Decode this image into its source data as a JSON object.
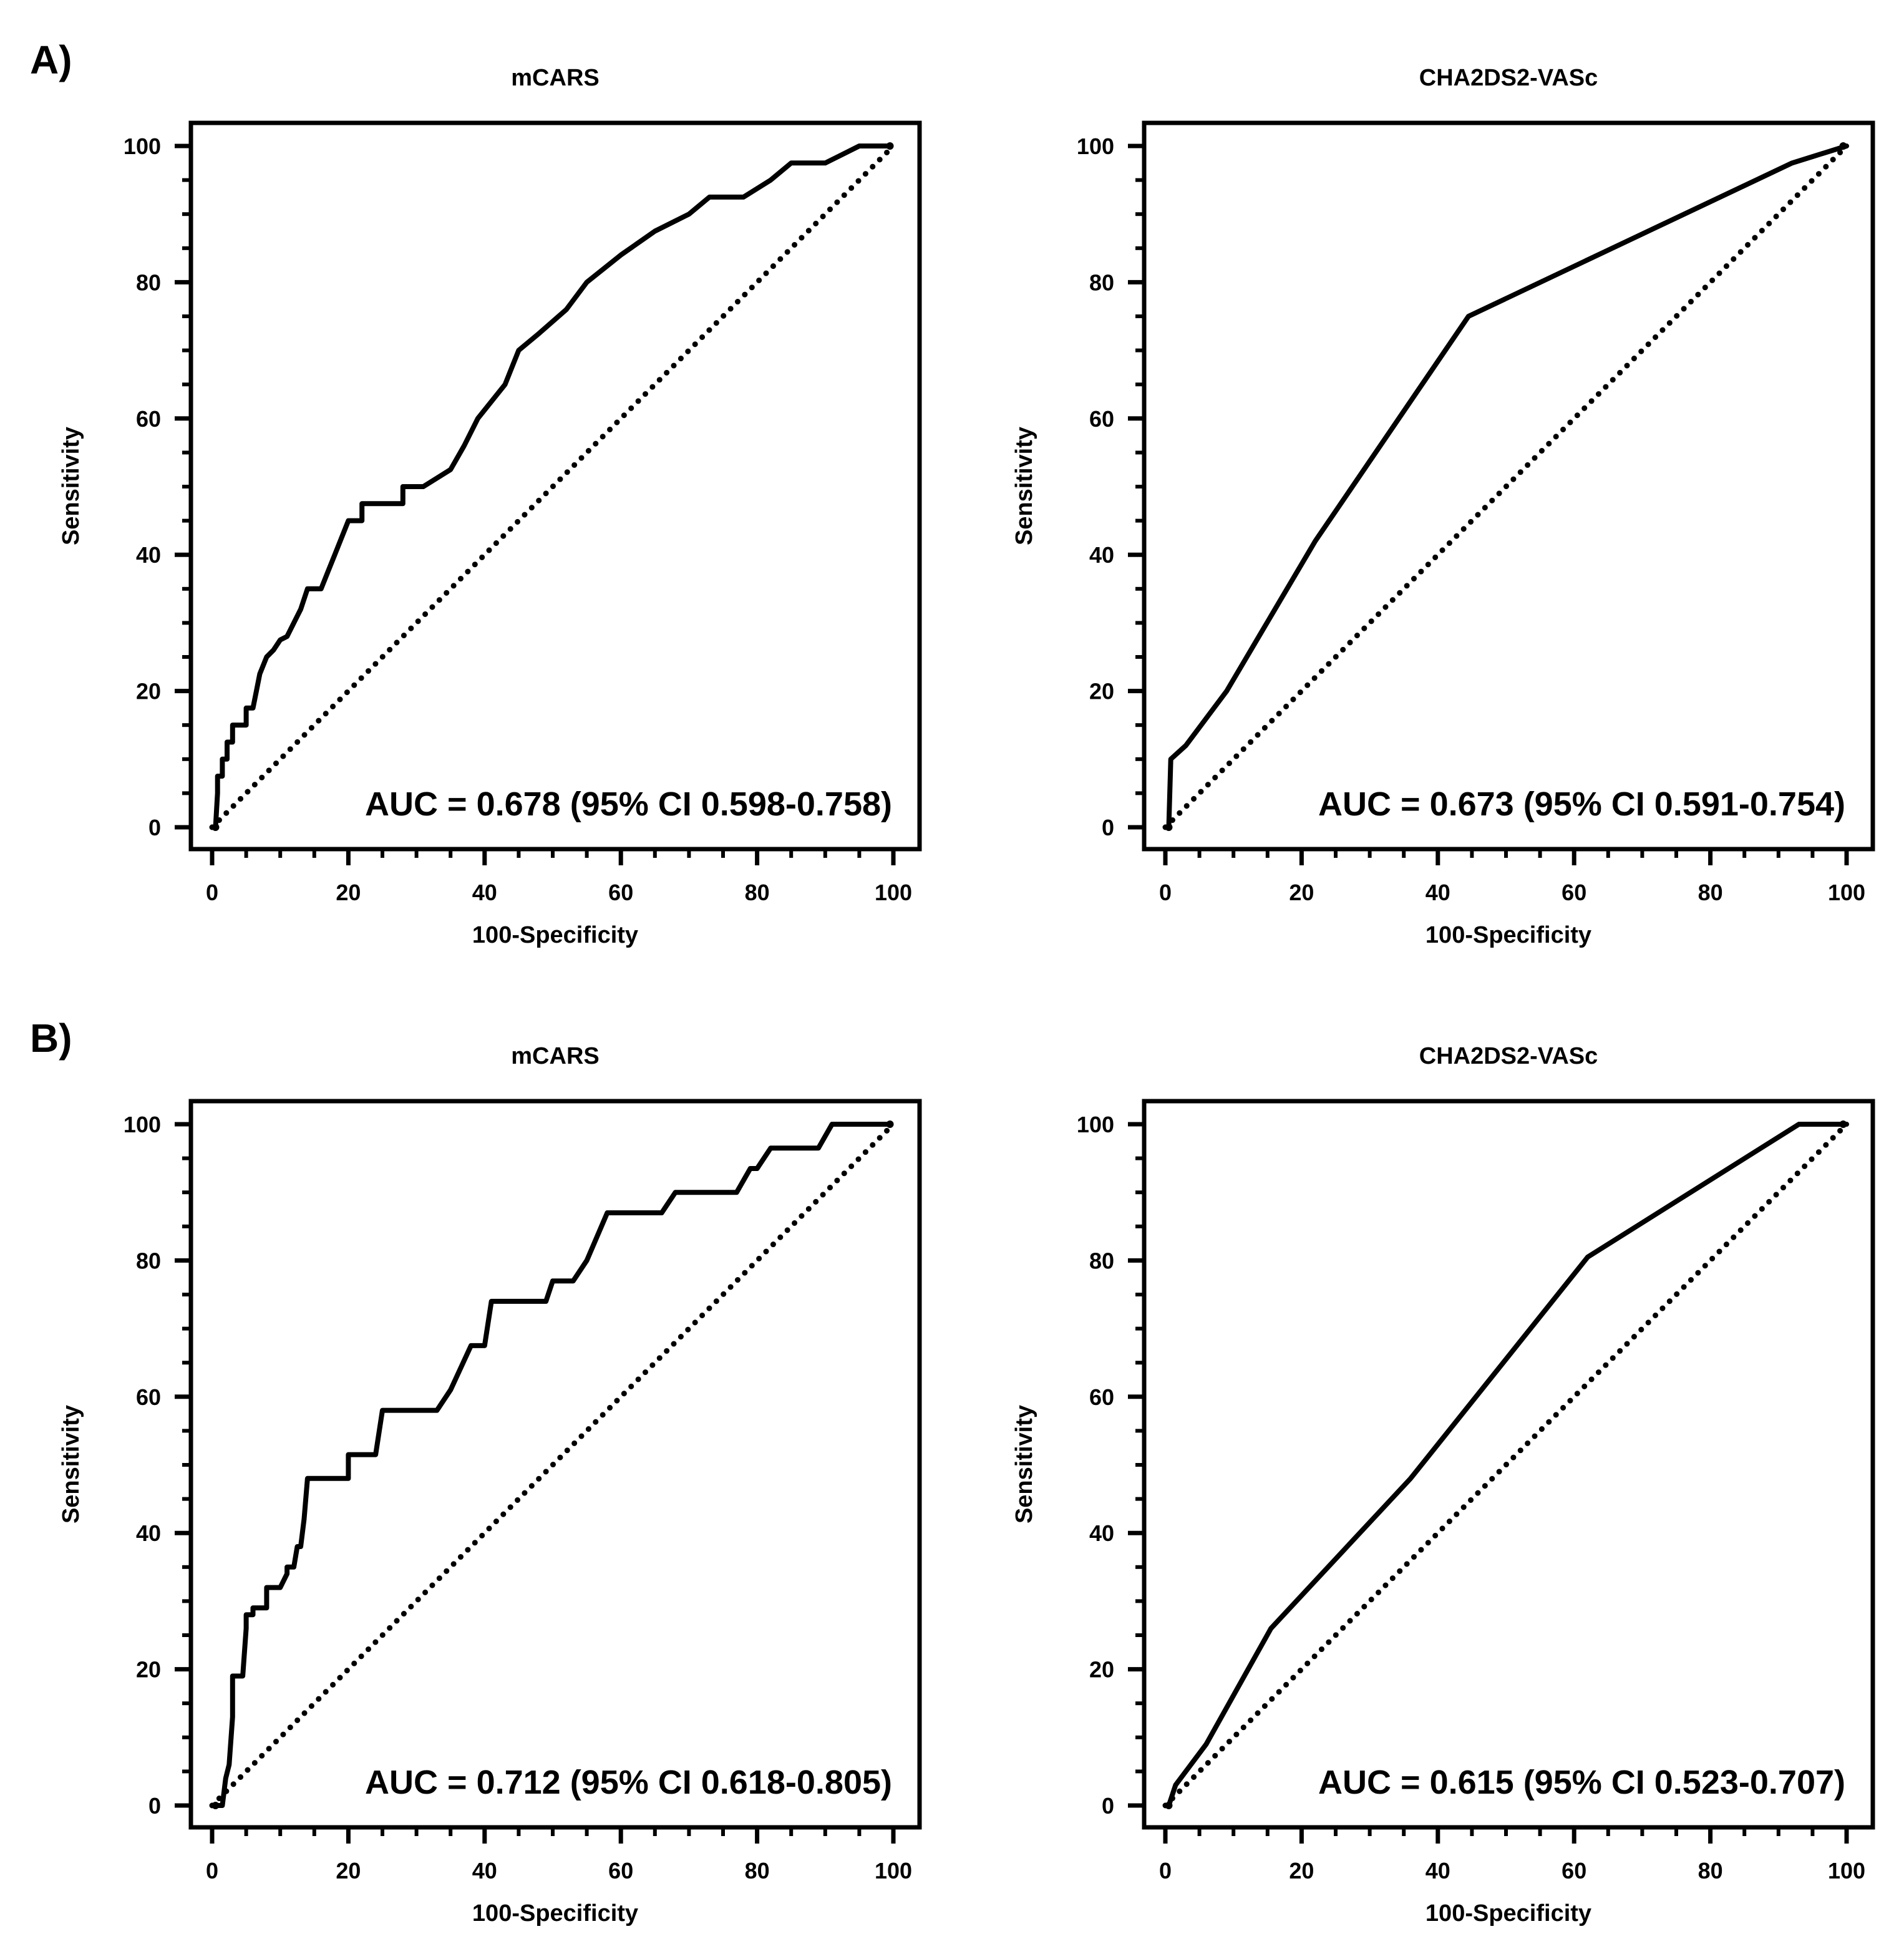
{
  "panels": [
    {
      "label": "A)"
    },
    {
      "label": "B)"
    }
  ],
  "chart_data": [
    {
      "type": "line",
      "panel": "A)",
      "title": "mCARS",
      "xlabel": "100-Specificity",
      "ylabel": "Sensitivity",
      "xlim": [
        0,
        100
      ],
      "ylim": [
        0,
        100
      ],
      "xticks": [
        0,
        20,
        40,
        60,
        80,
        100
      ],
      "yticks": [
        0,
        20,
        40,
        60,
        80,
        100
      ],
      "annotation": "AUC = 0.678 (95% CI 0.598-0.758)",
      "series": [
        {
          "name": "ROC",
          "x": [
            0.5,
            0.8,
            0.8,
            1.5,
            1.5,
            2.2,
            2.2,
            3,
            3,
            4,
            5,
            5,
            6,
            6.5,
            7,
            8,
            9,
            10,
            11,
            12,
            13,
            14,
            16,
            17,
            18,
            20,
            22,
            22,
            26,
            28,
            28,
            30,
            31,
            35,
            37,
            39,
            43,
            45,
            48,
            52,
            55,
            60,
            65,
            70,
            73,
            77,
            78,
            82,
            85,
            89,
            90,
            92,
            95,
            97,
            99.5
          ],
          "y": [
            0,
            5,
            7.5,
            7.5,
            10,
            10,
            12.5,
            12.5,
            15,
            15,
            15,
            17.5,
            17.5,
            20,
            22.5,
            25,
            26,
            27.5,
            28,
            30,
            32,
            35,
            35,
            37.5,
            40,
            45,
            45,
            47.5,
            47.5,
            47.5,
            50,
            50,
            50,
            52.5,
            56,
            60,
            65,
            70,
            72.5,
            76,
            80,
            84,
            87.5,
            90,
            92.5,
            92.5,
            92.5,
            95,
            97.5,
            97.5,
            97.5,
            98.5,
            100,
            100,
            100
          ]
        },
        {
          "name": "Reference",
          "x": [
            0,
            100
          ],
          "y": [
            0,
            100
          ]
        }
      ]
    },
    {
      "type": "line",
      "panel": "A)",
      "title": "CHA2DS2-VASc",
      "xlabel": "100-Specificity",
      "ylabel": "Sensitivity",
      "xlim": [
        0,
        100
      ],
      "ylim": [
        0,
        100
      ],
      "xticks": [
        0,
        20,
        40,
        60,
        80,
        100
      ],
      "yticks": [
        0,
        20,
        40,
        60,
        80,
        100
      ],
      "annotation": "AUC = 0.673 (95% CI 0.591-0.754)",
      "series": [
        {
          "name": "ROC",
          "x": [
            0.5,
            0.8,
            3,
            9,
            22,
            44.5,
            92,
            100
          ],
          "y": [
            0,
            10,
            12,
            20,
            42,
            75,
            97.5,
            100
          ]
        },
        {
          "name": "Reference",
          "x": [
            0,
            100
          ],
          "y": [
            0,
            100
          ]
        }
      ]
    },
    {
      "type": "line",
      "panel": "B)",
      "title": "mCARS",
      "xlabel": "100-Specificity",
      "ylabel": "Sensitivity",
      "xlim": [
        0,
        100
      ],
      "ylim": [
        0,
        100
      ],
      "xticks": [
        0,
        20,
        40,
        60,
        80,
        100
      ],
      "yticks": [
        0,
        20,
        40,
        60,
        80,
        100
      ],
      "annotation": "AUC = 0.712 (95% CI 0.618-0.805)",
      "series": [
        {
          "name": "ROC",
          "x": [
            0.5,
            1.5,
            2,
            2.5,
            3,
            3,
            4.5,
            5,
            5,
            6,
            6,
            8,
            8,
            10,
            11,
            11,
            12,
            12.5,
            13,
            13.5,
            14,
            15,
            20,
            20,
            24,
            25,
            33,
            35,
            38,
            40,
            41,
            49,
            50,
            50,
            53,
            55,
            58,
            66,
            68,
            75,
            77,
            79,
            80,
            82,
            84,
            89,
            91,
            94,
            99.5
          ],
          "y": [
            0,
            0,
            4,
            6,
            13,
            19,
            19,
            26,
            28,
            28,
            29,
            29,
            32,
            32,
            34,
            35,
            35,
            38,
            38,
            42,
            48,
            48,
            48,
            51.5,
            51.5,
            58,
            58,
            61,
            67.5,
            67.5,
            74,
            74,
            77,
            77,
            77,
            80,
            87,
            87,
            90,
            90,
            90,
            93.5,
            93.5,
            96.5,
            96.5,
            96.5,
            100,
            100,
            100
          ]
        },
        {
          "name": "Reference",
          "x": [
            0,
            100
          ],
          "y": [
            0,
            100
          ]
        }
      ]
    },
    {
      "type": "line",
      "panel": "B)",
      "title": "CHA2DS2-VASc",
      "xlabel": "100-Specificity",
      "ylabel": "Sensitivity",
      "xlim": [
        0,
        100
      ],
      "ylim": [
        0,
        100
      ],
      "xticks": [
        0,
        20,
        40,
        60,
        80,
        100
      ],
      "yticks": [
        0,
        20,
        40,
        60,
        80,
        100
      ],
      "annotation": "AUC = 0.615 (95% CI 0.523-0.707)",
      "series": [
        {
          "name": "ROC",
          "x": [
            0.5,
            1.5,
            6,
            15.5,
            36,
            62,
            93,
            100
          ],
          "y": [
            0,
            3,
            9,
            26,
            48,
            80.5,
            100,
            100
          ]
        },
        {
          "name": "Reference",
          "x": [
            0,
            100
          ],
          "y": [
            0,
            100
          ]
        }
      ]
    }
  ]
}
